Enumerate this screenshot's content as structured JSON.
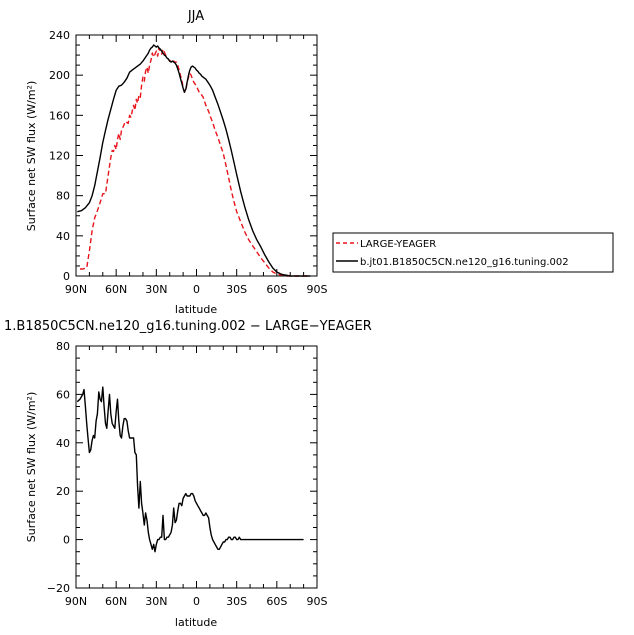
{
  "chart_data": [
    {
      "type": "line",
      "title": "JJA",
      "xlabel": "latitude",
      "ylabel": "Surface net SW flux (W/m²)",
      "xlim": [
        90,
        -90
      ],
      "ylim": [
        0,
        240
      ],
      "x_ticks": [
        90,
        60,
        30,
        0,
        -30,
        -60,
        -90
      ],
      "x_tick_labels": [
        "90N",
        "60N",
        "30N",
        "0",
        "30S",
        "60S",
        "90S"
      ],
      "y_ticks": [
        0,
        40,
        80,
        120,
        160,
        200,
        240
      ],
      "y_tick_labels": [
        "0",
        "40",
        "80",
        "120",
        "160",
        "200",
        "240"
      ],
      "legend_position": "right",
      "series": [
        {
          "name": "LARGE-YEAGER",
          "color": "#e8141c",
          "dash": "dashed",
          "x": [
            87,
            85,
            82,
            80,
            78,
            76,
            74,
            72,
            70,
            68,
            66,
            64,
            63,
            62,
            61,
            60,
            59,
            58,
            57,
            56,
            55,
            53,
            51,
            50,
            49,
            48,
            47,
            46,
            45,
            44,
            43,
            42,
            41,
            40,
            39,
            38,
            37,
            36,
            35,
            34,
            33,
            32,
            31,
            30,
            29,
            28,
            27,
            26,
            25,
            24,
            23,
            22,
            21,
            20,
            19,
            18,
            17,
            16,
            15,
            14,
            13,
            12,
            11,
            10,
            9,
            8,
            7,
            6,
            5,
            4,
            3,
            2,
            1,
            0,
            -1,
            -2,
            -3,
            -4,
            -5,
            -6,
            -7,
            -8,
            -9,
            -10,
            -12,
            -14,
            -16,
            -18,
            -20,
            -22,
            -24,
            -26,
            -28,
            -30,
            -33,
            -36,
            -39,
            -42,
            -45,
            -48,
            -51,
            -54,
            -57,
            -60,
            -63,
            -66,
            -70,
            -75,
            -80,
            -85
          ],
          "y": [
            7,
            7,
            8,
            25,
            45,
            58,
            65,
            73,
            82,
            82,
            100,
            118,
            125,
            124,
            130,
            126,
            136,
            142,
            136,
            145,
            148,
            154,
            152,
            160,
            158,
            164,
            170,
            165,
            176,
            172,
            180,
            178,
            190,
            198,
            194,
            204,
            208,
            202,
            210,
            215,
            222,
            218,
            221,
            224,
            219,
            227,
            224,
            221,
            226,
            223,
            220,
            217,
            216,
            214,
            215,
            213,
            214,
            213,
            213,
            210,
            205,
            200,
            195,
            188,
            183,
            185,
            192,
            198,
            202,
            200,
            196,
            193,
            191,
            189,
            186,
            183,
            182,
            180,
            178,
            174,
            170,
            167,
            164,
            160,
            153,
            145,
            138,
            130,
            122,
            110,
            98,
            85,
            74,
            64,
            54,
            44,
            36,
            30,
            24,
            18,
            13,
            8,
            4,
            2,
            1,
            0,
            0,
            0,
            0,
            0
          ]
        },
        {
          "name": "b.jt01.B1850C5CN.ne120_g16.tuning.002",
          "color": "#000000",
          "dash": "solid",
          "x": [
            89,
            86,
            83,
            80,
            78,
            76,
            74,
            72,
            70,
            68,
            66,
            64,
            62,
            60,
            58,
            56,
            54,
            52,
            50,
            48,
            46,
            44,
            42,
            40,
            38,
            36,
            35,
            34,
            33,
            32,
            31,
            30,
            29,
            28,
            27,
            26,
            25,
            24,
            23,
            22,
            21,
            20,
            19,
            18,
            17,
            16,
            15,
            14,
            13,
            12,
            11,
            10,
            9,
            8,
            7,
            6,
            5,
            4,
            3,
            2,
            1,
            0,
            -1,
            -2,
            -3,
            -4,
            -5,
            -6,
            -7,
            -8,
            -9,
            -10,
            -12,
            -14,
            -16,
            -18,
            -20,
            -22,
            -24,
            -26,
            -28,
            -30,
            -33,
            -36,
            -39,
            -42,
            -45,
            -48,
            -51,
            -54,
            -57,
            -60,
            -63,
            -66,
            -70,
            -75,
            -80,
            -85
          ],
          "y": [
            64,
            65,
            68,
            73,
            80,
            90,
            104,
            118,
            133,
            145,
            156,
            166,
            176,
            185,
            189,
            190,
            193,
            197,
            203,
            205,
            207,
            209,
            211,
            214,
            218,
            222,
            225,
            227,
            228,
            230,
            229,
            228,
            229,
            227,
            226,
            224,
            222,
            220,
            219,
            217,
            216,
            214,
            213,
            214,
            213,
            212,
            210,
            206,
            202,
            197,
            192,
            187,
            183,
            186,
            193,
            200,
            205,
            208,
            209,
            208,
            207,
            205,
            204,
            202,
            201,
            199,
            198,
            197,
            196,
            194,
            192,
            190,
            185,
            178,
            171,
            163,
            155,
            146,
            136,
            125,
            113,
            101,
            84,
            69,
            56,
            45,
            36,
            29,
            21,
            14,
            8,
            4,
            2,
            1,
            0,
            0,
            0,
            0
          ]
        }
      ]
    },
    {
      "type": "line",
      "title": "1.B1850C5CN.ne120_g16.tuning.002 − LARGE−YEAGER",
      "xlabel": "latitude",
      "ylabel": "Surface net SW flux (W/m²)",
      "xlim": [
        90,
        -90
      ],
      "ylim": [
        -20,
        80
      ],
      "x_ticks": [
        90,
        60,
        30,
        0,
        -30,
        -60,
        -90
      ],
      "x_tick_labels": [
        "90N",
        "60N",
        "30N",
        "0",
        "30S",
        "60S",
        "90S"
      ],
      "y_ticks": [
        -20,
        0,
        20,
        40,
        60,
        80
      ],
      "y_tick_labels": [
        "−20",
        "0",
        "20",
        "40",
        "60",
        "80"
      ],
      "series": [
        {
          "color": "#000000",
          "x": [
            89,
            87,
            85,
            84,
            83,
            82,
            81,
            80,
            79,
            78,
            77,
            76,
            75,
            74,
            73,
            72,
            71,
            70,
            69,
            68,
            67,
            66,
            65,
            64,
            63,
            62,
            61,
            60,
            59,
            58,
            57,
            56,
            55,
            54,
            53,
            52,
            51,
            50,
            49,
            48,
            47,
            46,
            45,
            44,
            43,
            42,
            41,
            40,
            39,
            38,
            37,
            36,
            35,
            34,
            33,
            32,
            31,
            30,
            29,
            28,
            27,
            26,
            25,
            24,
            23,
            22,
            21,
            20,
            19,
            18,
            17,
            16,
            15,
            14,
            13,
            12,
            11,
            10,
            9,
            8,
            7,
            6,
            5,
            4,
            3,
            2,
            1,
            0,
            -1,
            -2,
            -3,
            -4,
            -5,
            -6,
            -7,
            -8,
            -9,
            -10,
            -11,
            -12,
            -13,
            -14,
            -15,
            -16,
            -17,
            -18,
            -19,
            -20,
            -21,
            -22,
            -23,
            -24,
            -25,
            -26,
            -27,
            -28,
            -29,
            -30,
            -31,
            -32,
            -33,
            -34,
            -35,
            -36,
            -37,
            -38,
            -39,
            -40,
            -41,
            -42,
            -43,
            -44,
            -45,
            -46,
            -48,
            -50,
            -52,
            -54,
            -56,
            -58,
            -60,
            -62,
            -64,
            -66,
            -68,
            -70,
            -72,
            -75,
            -78,
            -80
          ],
          "y": [
            57,
            58,
            60,
            62,
            55,
            48,
            42,
            36,
            37,
            41,
            43,
            42,
            49,
            52,
            61,
            58,
            57,
            63,
            55,
            48,
            46,
            53,
            60,
            52,
            48,
            47,
            46,
            53,
            58,
            49,
            43,
            42,
            47,
            50,
            50,
            49,
            45,
            42,
            42,
            42,
            42,
            36,
            35,
            22,
            13,
            24,
            15,
            11,
            6,
            11,
            8,
            3,
            0,
            -2,
            -4,
            -2,
            -5,
            -2,
            0,
            0,
            1,
            1,
            10,
            0,
            0,
            1,
            1,
            2,
            3,
            6,
            13,
            7,
            8,
            12,
            15,
            15,
            14,
            17,
            18,
            19,
            18,
            18,
            18,
            19,
            19,
            18,
            16,
            15,
            14,
            13,
            12,
            11,
            10,
            10,
            11,
            10,
            9,
            5,
            2,
            0,
            -1,
            -2,
            -3,
            -4,
            -4,
            -3,
            -2,
            -1,
            -1,
            0,
            0,
            1,
            1,
            0,
            0,
            1,
            1,
            0,
            0,
            1,
            0,
            0,
            0,
            0,
            0,
            0,
            0,
            0,
            0,
            0,
            0,
            0,
            0,
            0,
            0,
            0,
            0,
            0,
            0,
            0,
            0,
            0,
            0,
            0,
            0,
            0,
            0,
            0,
            0,
            0
          ]
        }
      ]
    }
  ]
}
